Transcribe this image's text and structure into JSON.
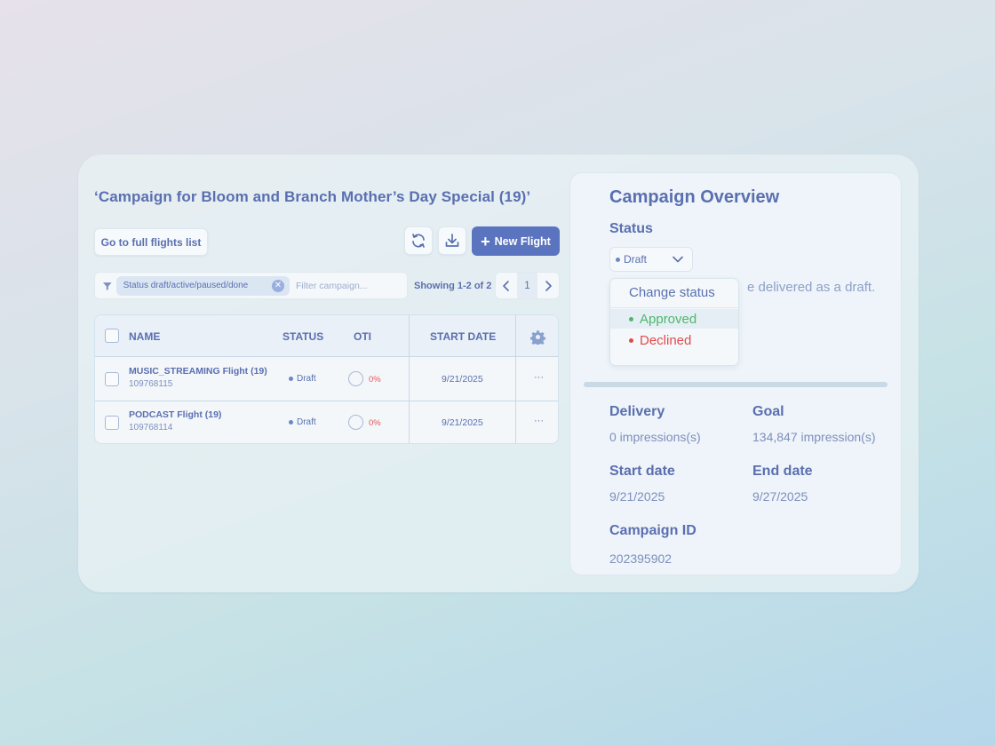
{
  "campaign_title": "‘Campaign for Bloom and Branch Mother’s Day Special (19)’",
  "toolbar": {
    "go_full_label": "Go to full flights list",
    "new_flight_label": "New Flight"
  },
  "filter": {
    "chip_label": "Status draft/active/paused/done",
    "search_placeholder": "Filter campaign..."
  },
  "pagination": {
    "showing_text": "Showing 1-2 of 2",
    "current_page": "1"
  },
  "table": {
    "headers": {
      "name": "NAME",
      "status": "STATUS",
      "oti": "OTI",
      "start_date": "START DATE"
    },
    "rows": [
      {
        "name": "MUSIC_STREAMING Flight (19)",
        "id": "109768115",
        "status": "Draft",
        "oti": "0%",
        "start_date": "9/21/2025",
        "more": "···"
      },
      {
        "name": "PODCAST Flight (19)",
        "id": "109768114",
        "status": "Draft",
        "oti": "0%",
        "start_date": "9/21/2025",
        "more": "···"
      }
    ]
  },
  "overview": {
    "title": "Campaign Overview",
    "status_label": "Status",
    "status_value": "Draft",
    "hint_text": "e delivered as a draft.",
    "dropdown": {
      "header": "Change status",
      "options": [
        "Approved",
        "Declined"
      ]
    },
    "delivery_label": "Delivery",
    "delivery_value": "0 impressions(s)",
    "goal_label": "Goal",
    "goal_value": "134,847 impression(s)",
    "start_date_label": "Start date",
    "start_date_value": "9/21/2025",
    "end_date_label": "End date",
    "end_date_value": "9/27/2025",
    "campaign_id_label": "Campaign ID",
    "campaign_id_value": "202395902"
  },
  "colors": {
    "accent": "#5b74bf",
    "approved": "#4cb86a",
    "declined": "#e24a4a",
    "oti": "#e05a5a"
  },
  "icons": [
    "refresh-icon",
    "download-icon",
    "plus-icon",
    "filter-icon",
    "close-icon",
    "chevron-left-icon",
    "chevron-right-icon",
    "gear-icon",
    "chevron-down-icon"
  ]
}
